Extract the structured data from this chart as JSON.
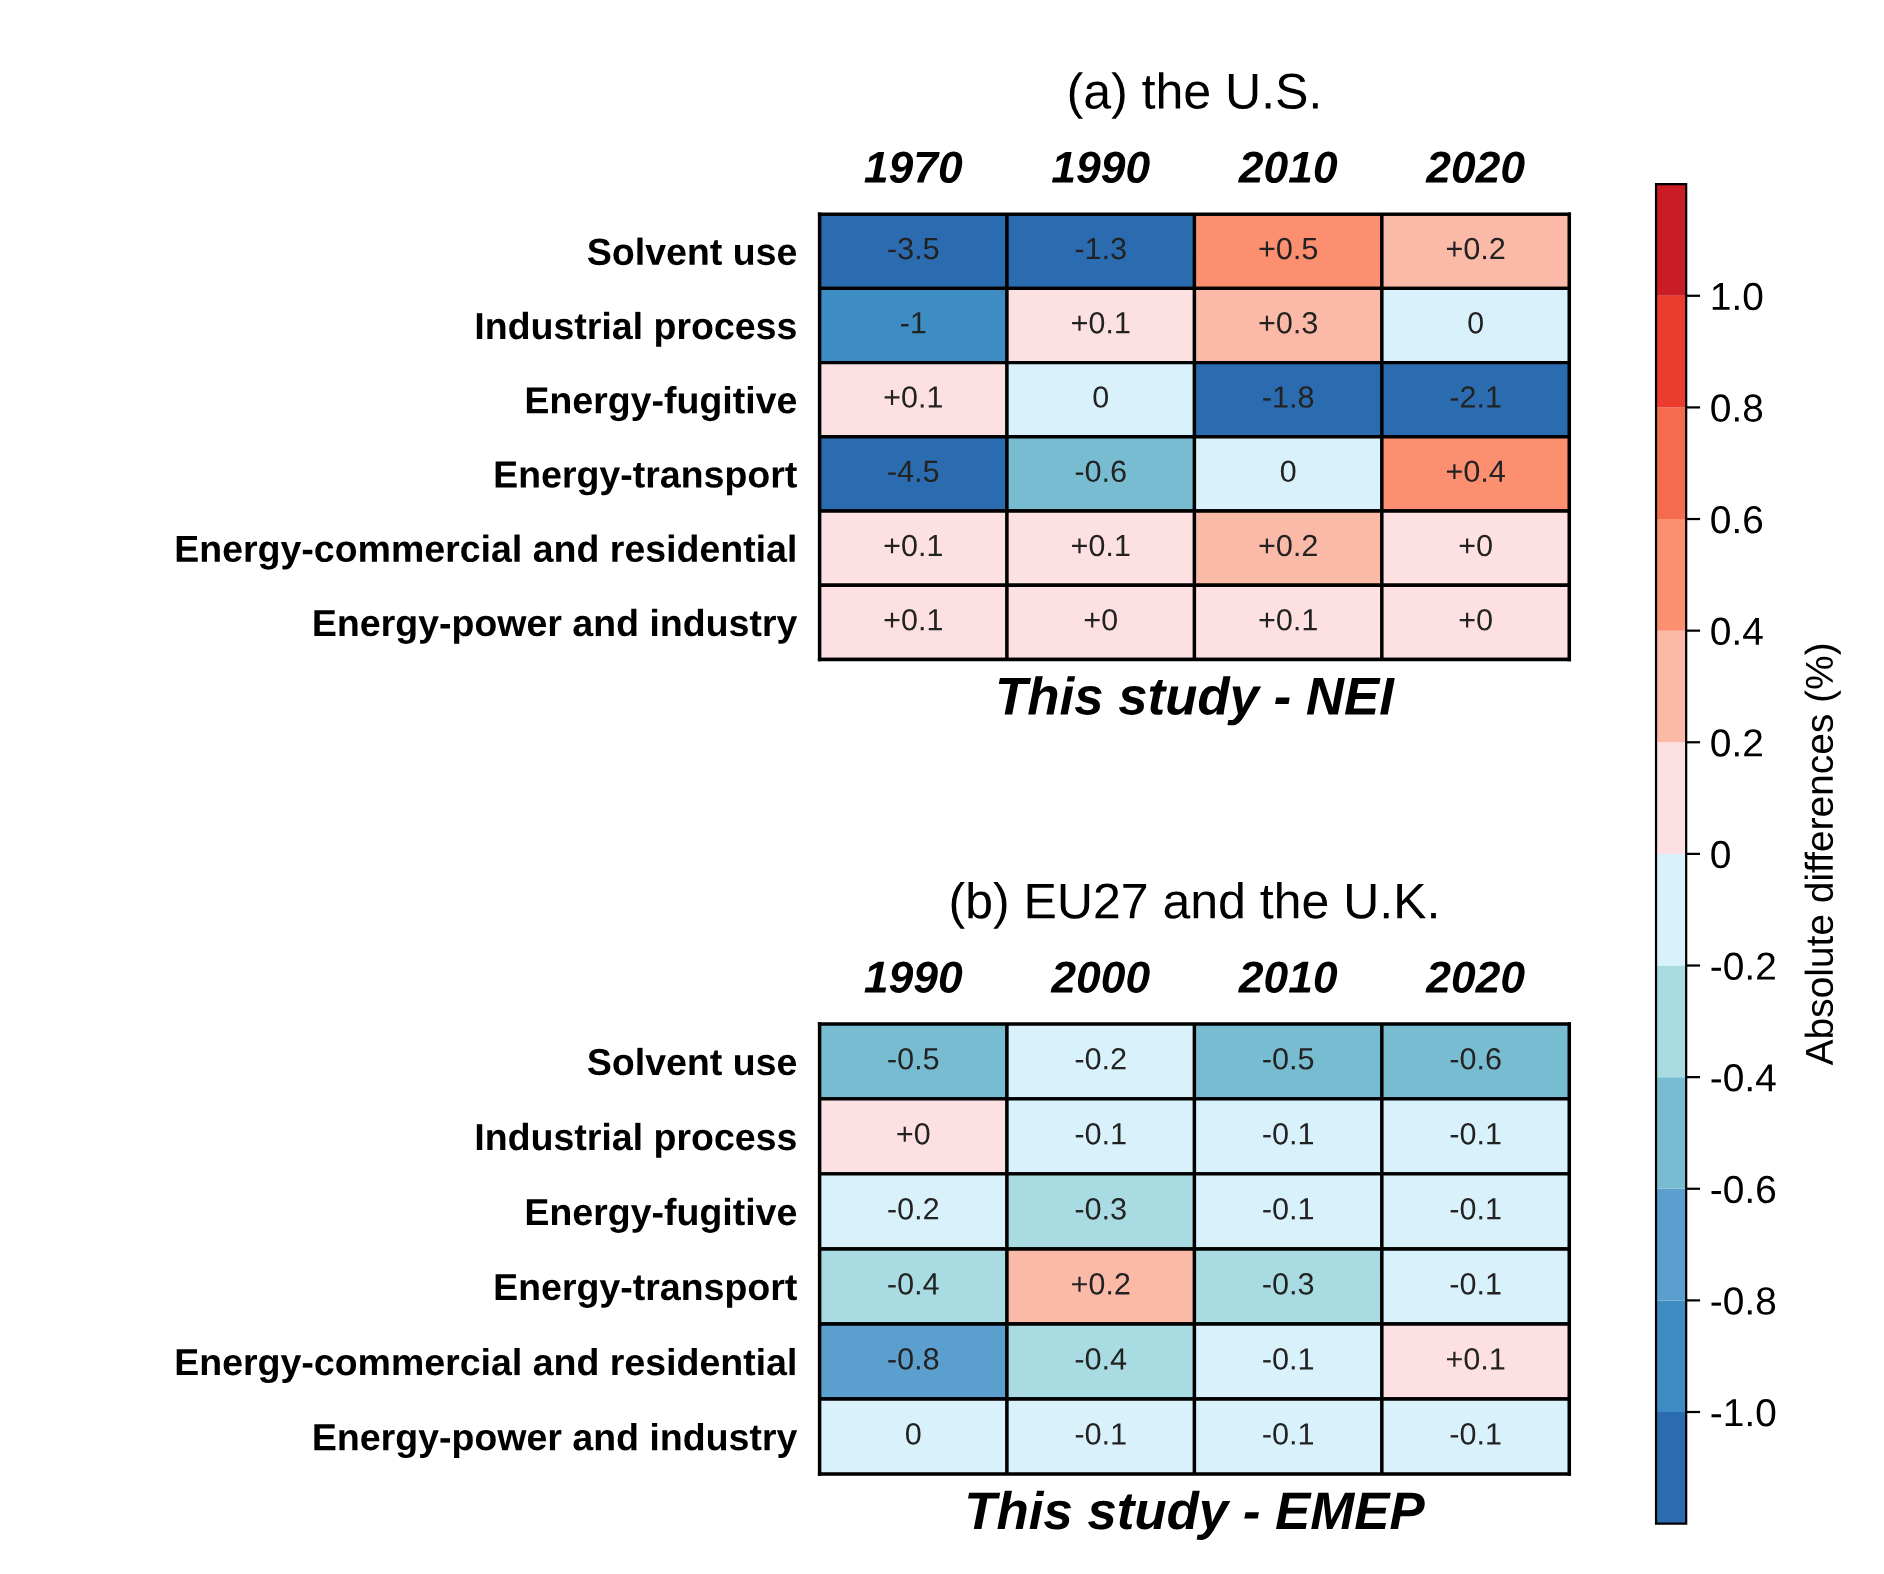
{
  "chart_data": [
    {
      "type": "heatmap",
      "title": "(a) the U.S.",
      "xlabel": "This study - NEI",
      "clabel": "Absolute differences (%)",
      "categories": [
        "1970",
        "1990",
        "2010",
        "2020"
      ],
      "y_categories": [
        "Solvent use",
        "Industrial process",
        "Energy-fugitive",
        "Energy-transport",
        "Energy-commercial and residential",
        "Energy-power and industry"
      ],
      "cells": [
        [
          -3.5,
          -1.3,
          0.5,
          0.2
        ],
        [
          -1,
          0.1,
          0.3,
          -0.0
        ],
        [
          0.1,
          -0.0,
          -1.8,
          -2.1
        ],
        [
          -4.5,
          -0.6,
          -0.0,
          0.4
        ],
        [
          0.1,
          0.1,
          0.2,
          0
        ],
        [
          0.1,
          0,
          0.1,
          0
        ]
      ],
      "cell_labels": [
        [
          "-3.5",
          "-1.3",
          "+0.5",
          "+0.2"
        ],
        [
          "-1",
          "+0.1",
          "+0.3",
          "0"
        ],
        [
          "+0.1",
          "0",
          "-1.8",
          "-2.1"
        ],
        [
          "-4.5",
          "-0.6",
          "0",
          "+0.4"
        ],
        [
          "+0.1",
          "+0.1",
          "+0.2",
          "+0"
        ],
        [
          "+0.1",
          "+0",
          "+0.1",
          "+0"
        ]
      ],
      "clim": [
        -1.2,
        1.2
      ],
      "cticks": [
        {
          "value": -1.0,
          "label": "-1.0"
        },
        {
          "value": -0.8,
          "label": "-0.8"
        },
        {
          "value": -0.6,
          "label": "-0.6"
        },
        {
          "value": -0.4,
          "label": "-0.4"
        },
        {
          "value": -0.2,
          "label": "-0.2"
        },
        0,
        {
          "value": 0.2,
          "label": "0.2"
        },
        {
          "value": 0.4,
          "label": "0.4"
        },
        {
          "value": 0.6,
          "label": "0.6"
        },
        {
          "value": 0.8,
          "label": "0.8"
        },
        {
          "value": 1.0,
          "label": "1.0"
        }
      ],
      "colors": [
        "#2b6cb0",
        "#3d8dc4",
        "#5a9fcd",
        "#78bcd2",
        "#a9dbe2",
        "#d9f1fb",
        "#fde0e2",
        "#fbb9a8",
        "#fc8f6f",
        "#f66a4e",
        "#eb3c2e",
        "#cb1b25"
      ]
    },
    {
      "type": "heatmap",
      "title": "(b) EU27 and the U.K.",
      "xlabel": "This study - EMEP",
      "categories": [
        "1990",
        "2000",
        "2010",
        "2020"
      ],
      "y_categories": [
        "Solvent use",
        "Industrial process",
        "Energy-fugitive",
        "Energy-transport",
        "Energy-commercial and residential",
        "Energy-power and industry"
      ],
      "cells": [
        [
          -0.5,
          -0.2,
          -0.5,
          -0.6
        ],
        [
          0,
          -0.1,
          -0.1,
          -0.1
        ],
        [
          -0.2,
          -0.3,
          -0.1,
          -0.1
        ],
        [
          -0.4,
          0.2,
          -0.3,
          -0.1
        ],
        [
          -0.8,
          -0.4,
          -0.1,
          0.1
        ],
        [
          -0.0,
          -0.1,
          -0.1,
          -0.1
        ]
      ],
      "cell_labels": [
        [
          "-0.5",
          "-0.2",
          "-0.5",
          "-0.6"
        ],
        [
          "+0",
          "-0.1",
          "-0.1",
          "-0.1"
        ],
        [
          "-0.2",
          "-0.3",
          "-0.1",
          "-0.1"
        ],
        [
          "-0.4",
          "+0.2",
          "-0.3",
          "-0.1"
        ],
        [
          "-0.8",
          "-0.4",
          "-0.1",
          "+0.1"
        ],
        [
          "0",
          "-0.1",
          "-0.1",
          "-0.1"
        ]
      ],
      "colors": [
        "#2b6cb0",
        "#3d8dc4",
        "#5a9fcd",
        "#78bcd2",
        "#a9dbe2",
        "#d9f1fb",
        "#fde0e2",
        "#fbb9a8",
        "#fc8f6f",
        "#f66a4e",
        "#eb3c2e",
        "#cb1b25"
      ]
    }
  ]
}
